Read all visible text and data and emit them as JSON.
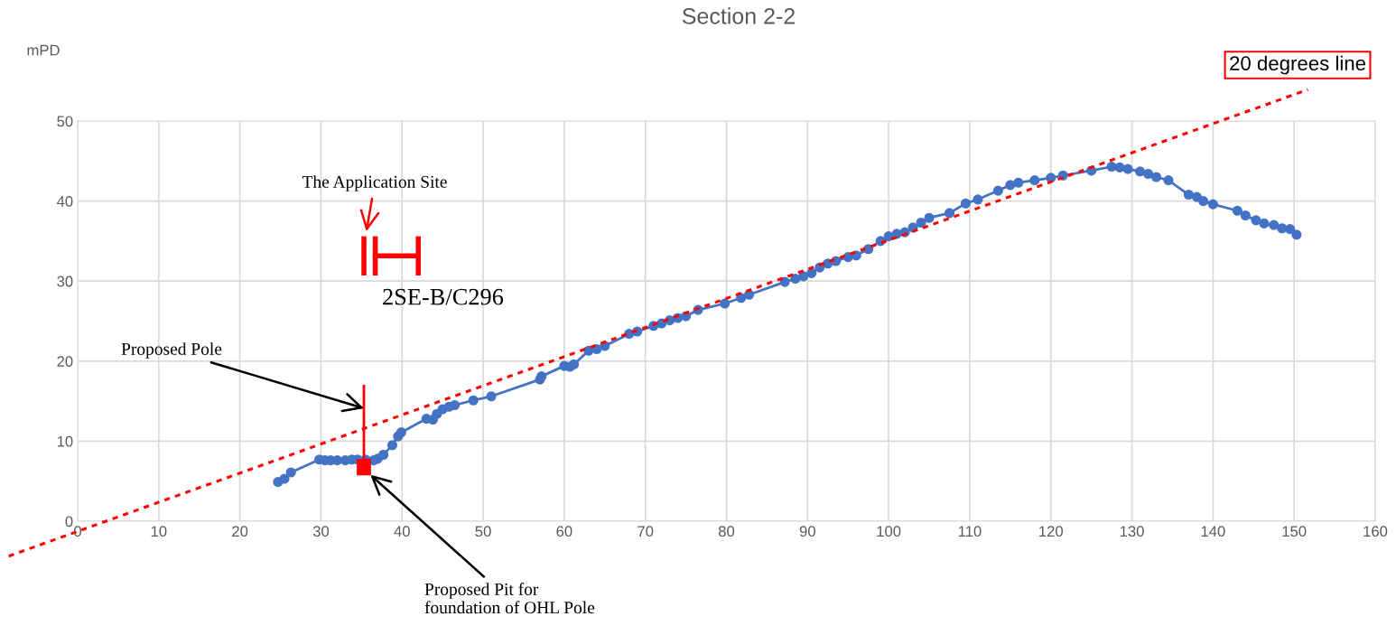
{
  "chart_data": {
    "type": "line",
    "title": "Section 2-2",
    "ylabel": "mPD",
    "xlim": [
      0,
      160
    ],
    "xticks": [
      0,
      10,
      20,
      30,
      40,
      50,
      60,
      70,
      80,
      90,
      100,
      110,
      120,
      130,
      140,
      150,
      160
    ],
    "ylim": [
      0,
      50
    ],
    "yticks": [
      0,
      10,
      20,
      30,
      40,
      50
    ],
    "grid": true,
    "legend": false,
    "marker": "circle",
    "series": [
      {
        "color": "#4472c4",
        "line_style": "solid",
        "x": [
          24.7,
          25.5,
          26.3,
          29.8,
          30.5,
          31.2,
          32,
          33,
          33.8,
          34.5,
          35.5,
          36.5,
          37,
          37.7,
          38.8,
          39.5,
          39.9,
          43,
          43.8,
          44.3,
          45,
          45.8,
          46.5,
          48.8,
          51,
          57,
          57.2,
          60,
          60.7,
          61.2,
          63,
          64,
          65,
          68,
          69,
          71,
          72,
          73,
          74,
          75,
          76.5,
          79.8,
          81.8,
          82.8,
          87.2,
          88.5,
          89.5,
          90.5,
          91.5,
          92.5,
          93.5,
          95,
          96,
          97.5,
          99,
          100,
          101,
          102,
          103,
          104,
          105,
          107.5,
          109.5,
          111,
          113.5,
          115,
          116,
          118,
          120,
          121.5,
          125,
          127.5,
          128.5,
          129.5,
          131,
          132,
          133,
          134.5,
          137,
          138,
          138.8,
          140,
          143,
          144,
          145.3,
          146.3,
          147.5,
          148.5,
          149.5,
          150.3
        ],
        "values": [
          4.9,
          5.3,
          6.1,
          7.7,
          7.6,
          7.6,
          7.6,
          7.6,
          7.7,
          7.7,
          7.7,
          7.6,
          7.8,
          8.3,
          9.5,
          10.6,
          11.1,
          12.8,
          12.7,
          13.4,
          14.0,
          14.3,
          14.5,
          15.1,
          15.6,
          17.7,
          18.1,
          19.4,
          19.3,
          19.6,
          21.3,
          21.5,
          21.9,
          23.4,
          23.7,
          24.4,
          24.7,
          25.1,
          25.4,
          25.6,
          26.4,
          27.2,
          27.9,
          28.3,
          29.9,
          30.3,
          30.6,
          31.0,
          31.7,
          32.2,
          32.5,
          33.0,
          33.2,
          34.0,
          35.0,
          35.6,
          35.9,
          36.1,
          36.7,
          37.3,
          37.9,
          38.5,
          39.7,
          40.2,
          41.3,
          42.0,
          42.3,
          42.6,
          42.9,
          43.2,
          43.8,
          44.3,
          44.2,
          44.0,
          43.7,
          43.4,
          43.0,
          42.6,
          40.8,
          40.5,
          40.0,
          39.6,
          38.8,
          38.2,
          37.6,
          37.2,
          37.0,
          36.6,
          36.5,
          35.8
        ]
      },
      {
        "type": "line",
        "name": "20 degrees line",
        "color": "#ff0000",
        "marker": "none",
        "line_style": "dotted",
        "x": [
          3.5,
          140.9
        ],
        "values": [
          0,
          50
        ]
      }
    ],
    "annotations": [
      "The Application Site",
      "2SE-B/C296",
      "Proposed Pole",
      "Proposed Pit for\nfoundation of OHL Pole"
    ]
  }
}
